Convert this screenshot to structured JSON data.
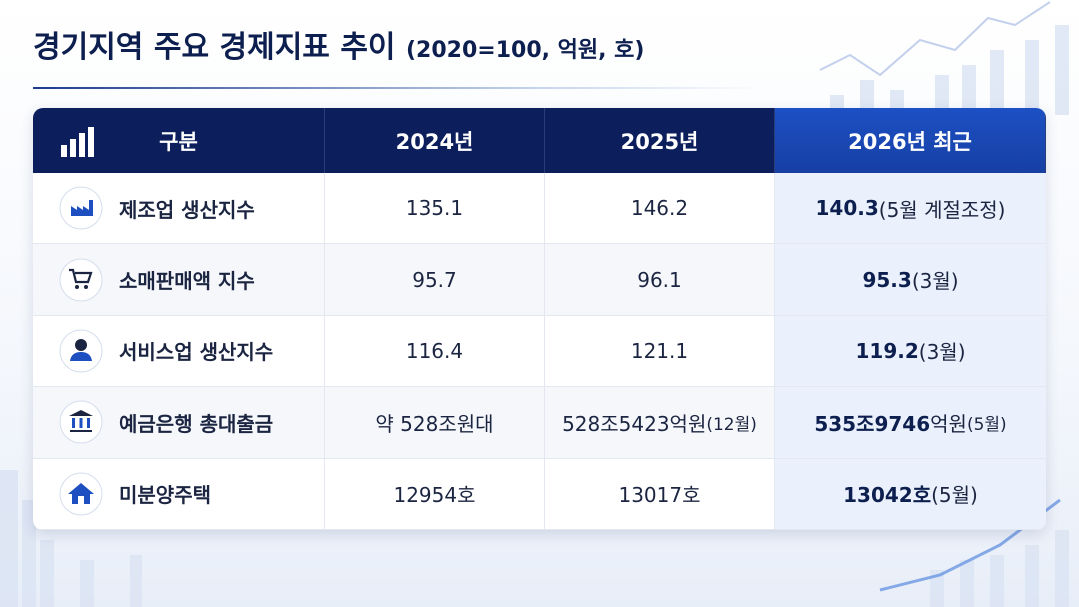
{
  "header": {
    "title": "경기지역 주요 경제지표 추이",
    "subtitle": "(2020=100, 억원, 호)"
  },
  "table": {
    "columns": [
      "구분",
      "2024년",
      "2025년",
      "2026년 최근"
    ],
    "rows": [
      {
        "label": "제조업 생산지수",
        "y2024": "135.1",
        "y2025": "146.2",
        "latest": {
          "value": "140.3",
          "note": "(5월 계절조정)"
        }
      },
      {
        "label": "소매판매액 지수",
        "y2024": "95.7",
        "y2025": "96.1",
        "latest": {
          "value": "95.3",
          "note": "(3월)"
        }
      },
      {
        "label": "서비스업 생산지수",
        "y2024": "116.4",
        "y2025": "121.1",
        "latest": {
          "value": "119.2",
          "note": "(3월)"
        }
      },
      {
        "label": "예금은행 총대출금",
        "y2024": "약 528조원대",
        "y2025": {
          "value": "528조5423억원",
          "note": "(12월)"
        },
        "latest": {
          "value": "535조9746",
          "unit": "억원",
          "note": "(5월)"
        }
      },
      {
        "label": "미분양주택",
        "y2024": "12954호",
        "y2025": "13017호",
        "latest": {
          "value": "13042호",
          "note": "(5월)"
        }
      }
    ]
  }
}
